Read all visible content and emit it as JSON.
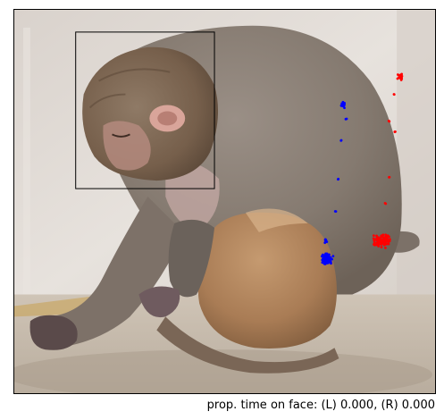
{
  "photo": {
    "subject": "rhesus macaque mother holding infant"
  },
  "overlay": {
    "face_box_color": "#000000",
    "left_gaze_color": "#0000ff",
    "right_gaze_color": "#ff0000"
  },
  "caption": {
    "text": "prop. time on face: (L) 0.000, (R) 0.000"
  }
}
